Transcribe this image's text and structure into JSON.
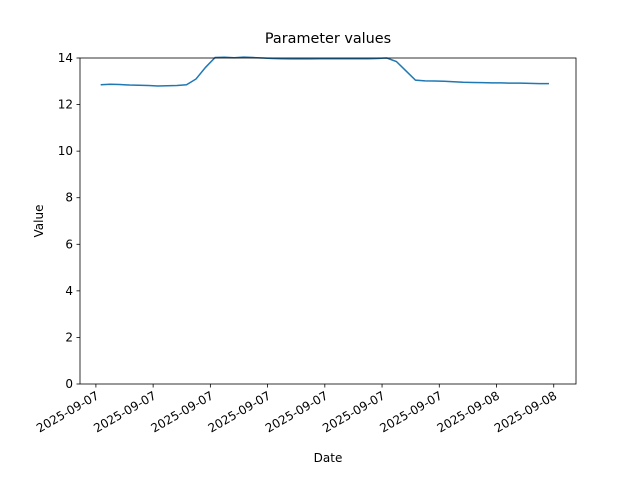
{
  "chart_data": {
    "type": "line",
    "title": "Parameter values",
    "xlabel": "Date",
    "ylabel": "Value",
    "x": [
      "2025-09-07T03:15:00",
      "2025-09-07T03:45:00",
      "2025-09-07T04:15:00",
      "2025-09-07T04:45:00",
      "2025-09-07T05:15:00",
      "2025-09-07T05:45:00",
      "2025-09-07T06:15:00",
      "2025-09-07T06:45:00",
      "2025-09-07T07:15:00",
      "2025-09-07T07:45:00",
      "2025-09-07T08:15:00",
      "2025-09-07T08:45:00",
      "2025-09-07T09:15:00",
      "2025-09-07T09:45:00",
      "2025-09-07T10:15:00",
      "2025-09-07T10:45:00",
      "2025-09-07T11:15:00",
      "2025-09-07T11:45:00",
      "2025-09-07T12:15:00",
      "2025-09-07T12:45:00",
      "2025-09-07T13:15:00",
      "2025-09-07T13:45:00",
      "2025-09-07T14:15:00",
      "2025-09-07T14:45:00",
      "2025-09-07T15:15:00",
      "2025-09-07T15:45:00",
      "2025-09-07T16:15:00",
      "2025-09-07T16:45:00",
      "2025-09-07T17:15:00",
      "2025-09-07T17:45:00",
      "2025-09-07T18:15:00",
      "2025-09-07T18:45:00",
      "2025-09-07T19:15:00",
      "2025-09-07T19:45:00",
      "2025-09-07T20:15:00",
      "2025-09-07T20:45:00",
      "2025-09-07T21:15:00",
      "2025-09-07T21:45:00",
      "2025-09-07T22:15:00",
      "2025-09-07T22:45:00",
      "2025-09-07T23:15:00",
      "2025-09-07T23:45:00",
      "2025-09-08T00:15:00",
      "2025-09-08T00:45:00",
      "2025-09-08T01:15:00",
      "2025-09-08T01:45:00",
      "2025-09-08T02:15:00",
      "2025-09-08T02:45:00"
    ],
    "series": [
      {
        "name": "Value",
        "color": "#1f77b4",
        "values": [
          12.85,
          12.87,
          12.86,
          12.84,
          12.83,
          12.82,
          12.8,
          12.81,
          12.82,
          12.85,
          13.1,
          13.6,
          14.02,
          14.03,
          14.01,
          14.04,
          14.02,
          14.0,
          13.98,
          13.97,
          13.96,
          13.97,
          13.96,
          13.97,
          13.97,
          13.97,
          13.97,
          13.97,
          13.97,
          13.98,
          14.0,
          13.85,
          13.45,
          13.05,
          13.02,
          13.01,
          13.0,
          12.98,
          12.96,
          12.95,
          12.94,
          12.93,
          12.93,
          12.92,
          12.92,
          12.91,
          12.9,
          12.9
        ]
      }
    ],
    "xlim": [
      "2025-09-07T02:10:00",
      "2025-09-08T04:10:00"
    ],
    "xticks": [
      {
        "value": "2025-09-07T03:00:00",
        "label": "2025-09-07"
      },
      {
        "value": "2025-09-07T06:00:00",
        "label": "2025-09-07"
      },
      {
        "value": "2025-09-07T09:00:00",
        "label": "2025-09-07"
      },
      {
        "value": "2025-09-07T12:00:00",
        "label": "2025-09-07"
      },
      {
        "value": "2025-09-07T15:00:00",
        "label": "2025-09-07"
      },
      {
        "value": "2025-09-07T18:00:00",
        "label": "2025-09-07"
      },
      {
        "value": "2025-09-07T21:00:00",
        "label": "2025-09-07"
      },
      {
        "value": "2025-09-08T00:00:00",
        "label": "2025-09-08"
      },
      {
        "value": "2025-09-08T03:00:00",
        "label": "2025-09-08"
      }
    ],
    "ylim": [
      0,
      14
    ],
    "yticks": [
      0,
      2,
      4,
      6,
      8,
      10,
      12,
      14
    ],
    "grid": false
  }
}
